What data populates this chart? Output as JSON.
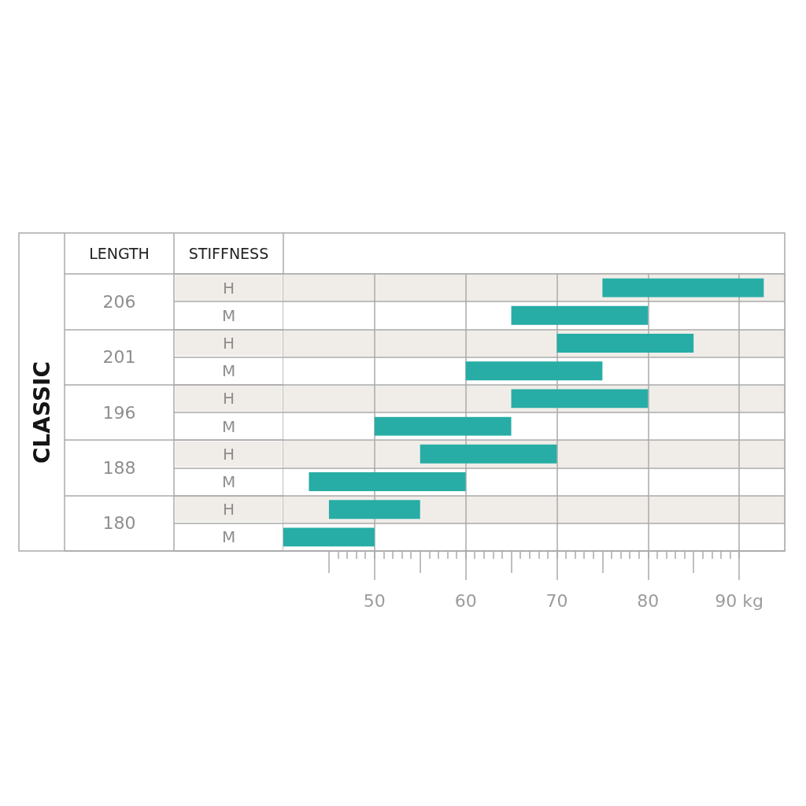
{
  "chart_data": {
    "type": "bar",
    "orientation": "horizontal",
    "categories": [
      "H",
      "M",
      "H",
      "M",
      "H",
      "M",
      "H",
      "M",
      "H",
      "M"
    ],
    "base": [
      75,
      65,
      70,
      60,
      65,
      50,
      55,
      42.8,
      45,
      40
    ],
    "values": [
      17.7,
      15,
      15,
      15,
      15,
      15,
      15,
      17.2,
      10,
      10
    ],
    "color": "#27ada5",
    "xlim": [
      40,
      95
    ],
    "xticks": [
      {
        "value": 45,
        "label": null
      },
      {
        "value": 46,
        "label": null
      },
      {
        "value": 47,
        "label": null
      },
      {
        "value": 48,
        "label": null
      },
      {
        "value": 49,
        "label": null
      },
      50,
      {
        "value": 51,
        "label": null
      },
      {
        "value": 52,
        "label": null
      },
      {
        "value": 53,
        "label": null
      },
      {
        "value": 54,
        "label": null
      },
      {
        "value": 55,
        "label": null
      },
      {
        "value": 56,
        "label": null
      },
      {
        "value": 57,
        "label": null
      },
      {
        "value": 58,
        "label": null
      },
      {
        "value": 59,
        "label": null
      },
      60,
      {
        "value": 61,
        "label": null
      },
      {
        "value": 62,
        "label": null
      },
      {
        "value": 63,
        "label": null
      },
      {
        "value": 64,
        "label": null
      },
      {
        "value": 65,
        "label": null
      },
      {
        "value": 66,
        "label": null
      },
      {
        "value": 67,
        "label": null
      },
      {
        "value": 68,
        "label": null
      },
      {
        "value": 69,
        "label": null
      },
      70,
      {
        "value": 71,
        "label": null
      },
      {
        "value": 72,
        "label": null
      },
      {
        "value": 73,
        "label": null
      },
      {
        "value": 74,
        "label": null
      },
      {
        "value": 75,
        "label": null
      },
      {
        "value": 76,
        "label": null
      },
      {
        "value": 77,
        "label": null
      },
      {
        "value": 78,
        "label": null
      },
      {
        "value": 79,
        "label": null
      },
      80,
      {
        "value": 81,
        "label": null
      },
      {
        "value": 82,
        "label": null
      },
      {
        "value": 83,
        "label": null
      },
      {
        "value": 84,
        "label": null
      },
      {
        "value": 85,
        "label": null
      },
      {
        "value": 86,
        "label": null
      },
      {
        "value": 87,
        "label": null
      },
      {
        "value": 88,
        "label": null
      },
      {
        "value": 89,
        "label": null
      },
      {
        "value": 90,
        "label": "90 kg"
      }
    ],
    "grid": true,
    "annotations": [
      "CLASSIC",
      "LENGTH",
      "STIFFNESS",
      "206",
      "201",
      "196",
      "188",
      "180"
    ]
  }
}
